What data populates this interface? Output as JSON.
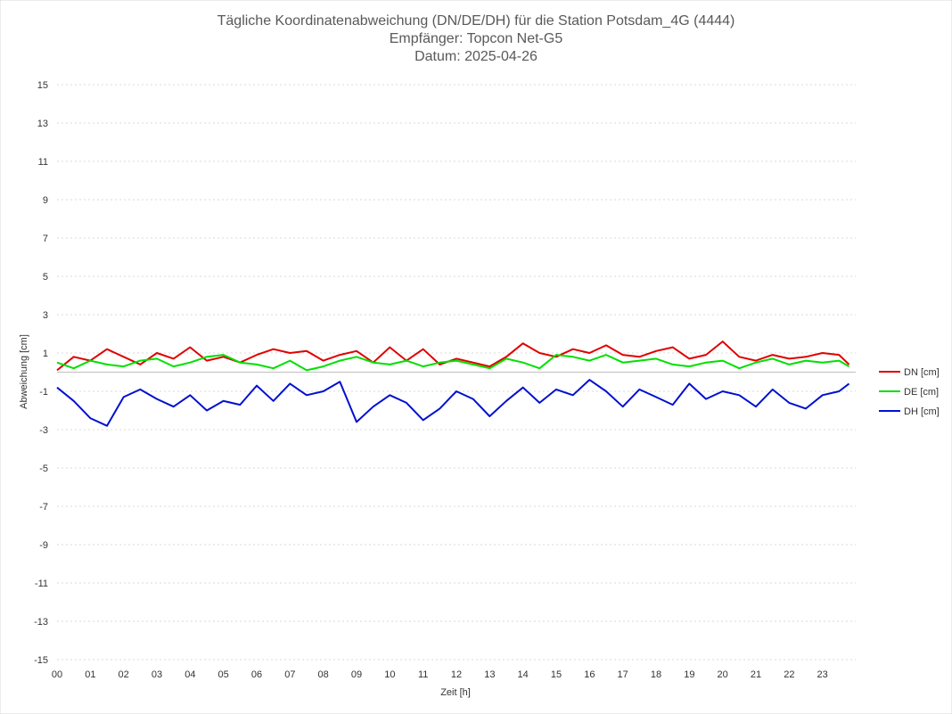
{
  "chart_data": {
    "type": "line",
    "title": [
      "Tägliche Koordinatenabweichung (DN/DE/DH) für die Station Potsdam_4G (4444)",
      "Empfänger: Topcon Net-G5",
      "Datum: 2025-04-26"
    ],
    "xlabel": "Zeit [h]",
    "ylabel": "Abweichung [cm]",
    "xlim": [
      0,
      24
    ],
    "ylim": [
      -15,
      15
    ],
    "x_ticks": [
      "00",
      "01",
      "02",
      "03",
      "04",
      "05",
      "06",
      "07",
      "08",
      "09",
      "10",
      "11",
      "12",
      "13",
      "14",
      "15",
      "16",
      "17",
      "18",
      "19",
      "20",
      "21",
      "22",
      "23"
    ],
    "y_ticks": [
      15,
      13,
      11,
      9,
      7,
      5,
      3,
      1,
      -1,
      -3,
      -5,
      -7,
      -9,
      -11,
      -13,
      -15
    ],
    "grid": true,
    "legend_position": "right",
    "x_hours": [
      0,
      0.5,
      1,
      1.5,
      2,
      2.5,
      3,
      3.5,
      4,
      4.5,
      5,
      5.5,
      6,
      6.5,
      7,
      7.5,
      8,
      8.5,
      9,
      9.5,
      10,
      10.5,
      11,
      11.5,
      12,
      12.5,
      13,
      13.5,
      14,
      14.5,
      15,
      15.5,
      16,
      16.5,
      17,
      17.5,
      18,
      18.5,
      19,
      19.5,
      20,
      20.5,
      21,
      21.5,
      22,
      22.5,
      23,
      23.5,
      23.8
    ],
    "series": [
      {
        "name": "DN [cm]",
        "color": "#e00000",
        "values": [
          0.1,
          0.8,
          0.6,
          1.2,
          0.8,
          0.4,
          1.0,
          0.7,
          1.3,
          0.6,
          0.8,
          0.5,
          0.9,
          1.2,
          1.0,
          1.1,
          0.6,
          0.9,
          1.1,
          0.5,
          1.3,
          0.6,
          1.2,
          0.4,
          0.7,
          0.5,
          0.3,
          0.8,
          1.5,
          1.0,
          0.8,
          1.2,
          1.0,
          1.4,
          0.9,
          0.8,
          1.1,
          1.3,
          0.7,
          0.9,
          1.6,
          0.8,
          0.6,
          0.9,
          0.7,
          0.8,
          1.0,
          0.9,
          0.4
        ]
      },
      {
        "name": "DE [cm]",
        "color": "#00e000",
        "values": [
          0.5,
          0.2,
          0.6,
          0.4,
          0.3,
          0.6,
          0.7,
          0.3,
          0.5,
          0.8,
          0.9,
          0.5,
          0.4,
          0.2,
          0.6,
          0.1,
          0.3,
          0.6,
          0.8,
          0.5,
          0.4,
          0.6,
          0.3,
          0.5,
          0.6,
          0.4,
          0.2,
          0.7,
          0.5,
          0.2,
          0.9,
          0.8,
          0.6,
          0.9,
          0.5,
          0.6,
          0.7,
          0.4,
          0.3,
          0.5,
          0.6,
          0.2,
          0.5,
          0.7,
          0.4,
          0.6,
          0.5,
          0.6,
          0.3
        ]
      },
      {
        "name": "DH [cm]",
        "color": "#0010d0",
        "values": [
          -0.8,
          -1.5,
          -2.4,
          -2.8,
          -1.3,
          -0.9,
          -1.4,
          -1.8,
          -1.2,
          -2.0,
          -1.5,
          -1.7,
          -0.7,
          -1.5,
          -0.6,
          -1.2,
          -1.0,
          -0.5,
          -2.6,
          -1.8,
          -1.2,
          -1.6,
          -2.5,
          -1.9,
          -1.0,
          -1.4,
          -2.3,
          -1.5,
          -0.8,
          -1.6,
          -0.9,
          -1.2,
          -0.4,
          -1.0,
          -1.8,
          -0.9,
          -1.3,
          -1.7,
          -0.6,
          -1.4,
          -1.0,
          -1.2,
          -1.8,
          -0.9,
          -1.6,
          -1.9,
          -1.2,
          -1.0,
          -0.6
        ]
      }
    ]
  }
}
